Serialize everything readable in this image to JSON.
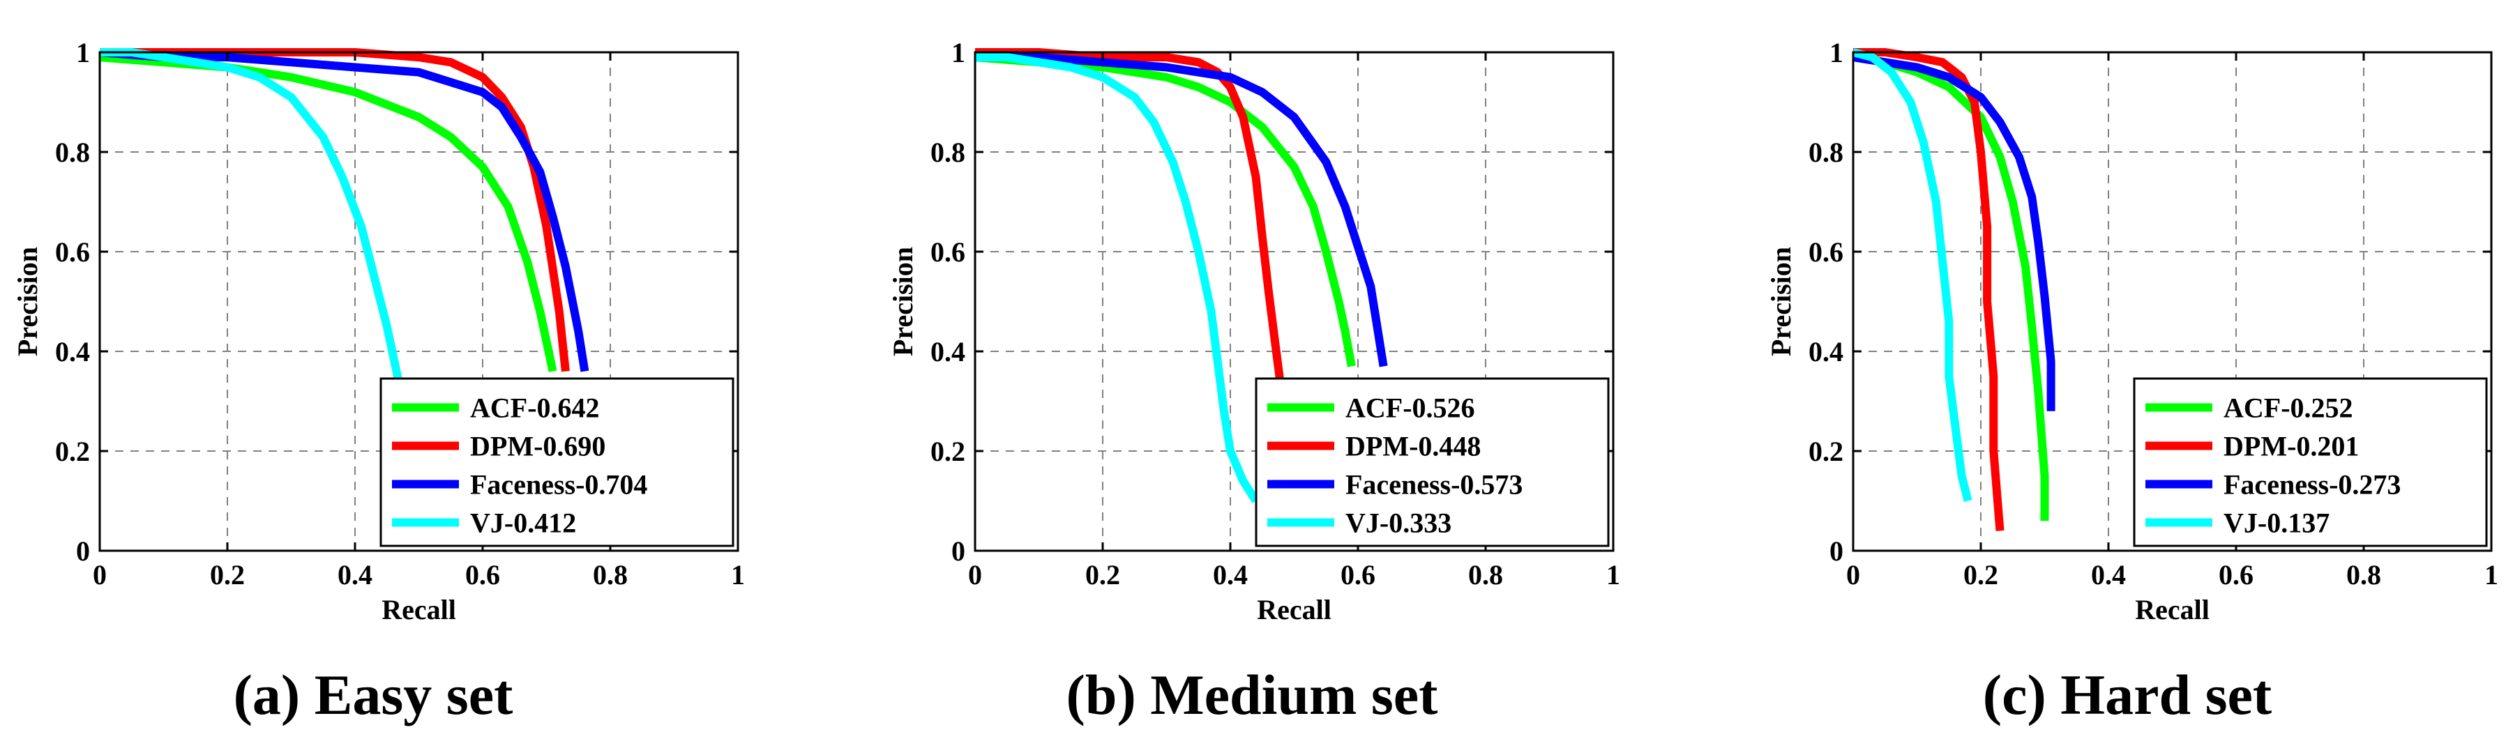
{
  "chart_data": [
    {
      "type": "line",
      "caption": "(a) Easy set",
      "xlabel": "Recall",
      "ylabel": "Precision",
      "xlim": [
        0,
        1
      ],
      "ylim": [
        0,
        1
      ],
      "xticks": [
        "0",
        "0.2",
        "0.4",
        "0.6",
        "0.8",
        "1"
      ],
      "yticks": [
        "0",
        "0.2",
        "0.4",
        "0.6",
        "0.8",
        "1"
      ],
      "grid": true,
      "legend_position": "bottom-right",
      "series": [
        {
          "name": "ACF-0.642",
          "color": "#00ff00",
          "x": [
            0.0,
            0.1,
            0.2,
            0.3,
            0.4,
            0.5,
            0.55,
            0.6,
            0.64,
            0.67,
            0.69,
            0.7,
            0.71
          ],
          "y": [
            0.99,
            0.98,
            0.97,
            0.95,
            0.92,
            0.87,
            0.83,
            0.77,
            0.69,
            0.58,
            0.48,
            0.42,
            0.36
          ]
        },
        {
          "name": "DPM-0.690",
          "color": "#ff0000",
          "x": [
            0.0,
            0.1,
            0.2,
            0.3,
            0.4,
            0.5,
            0.55,
            0.6,
            0.63,
            0.66,
            0.68,
            0.7,
            0.72,
            0.73
          ],
          "y": [
            1.0,
            1.0,
            1.0,
            1.0,
            1.0,
            0.99,
            0.98,
            0.95,
            0.91,
            0.85,
            0.77,
            0.65,
            0.48,
            0.36
          ]
        },
        {
          "name": "Faceness-0.704",
          "color": "#0000ff",
          "x": [
            0.0,
            0.1,
            0.2,
            0.3,
            0.4,
            0.5,
            0.6,
            0.63,
            0.66,
            0.69,
            0.71,
            0.73,
            0.75,
            0.76
          ],
          "y": [
            1.0,
            0.99,
            0.99,
            0.98,
            0.97,
            0.96,
            0.92,
            0.89,
            0.83,
            0.76,
            0.67,
            0.57,
            0.44,
            0.36
          ]
        },
        {
          "name": "VJ-0.412",
          "color": "#00ffff",
          "x": [
            0.0,
            0.05,
            0.1,
            0.15,
            0.2,
            0.25,
            0.3,
            0.35,
            0.38,
            0.41,
            0.43,
            0.45,
            0.47,
            0.49,
            0.51,
            0.53
          ],
          "y": [
            1.0,
            1.0,
            0.99,
            0.98,
            0.97,
            0.95,
            0.91,
            0.83,
            0.75,
            0.65,
            0.55,
            0.45,
            0.33,
            0.22,
            0.13,
            0.07
          ]
        }
      ]
    },
    {
      "type": "line",
      "caption": "(b) Medium set",
      "xlabel": "Recall",
      "ylabel": "Precision",
      "xlim": [
        0,
        1
      ],
      "ylim": [
        0,
        1
      ],
      "xticks": [
        "0",
        "0.2",
        "0.4",
        "0.6",
        "0.8",
        "1"
      ],
      "yticks": [
        "0",
        "0.2",
        "0.4",
        "0.6",
        "0.8",
        "1"
      ],
      "grid": true,
      "legend_position": "bottom-right",
      "series": [
        {
          "name": "ACF-0.526",
          "color": "#00ff00",
          "x": [
            0.0,
            0.1,
            0.2,
            0.3,
            0.35,
            0.4,
            0.45,
            0.5,
            0.53,
            0.55,
            0.57,
            0.58,
            0.59
          ],
          "y": [
            0.99,
            0.98,
            0.97,
            0.95,
            0.93,
            0.9,
            0.85,
            0.77,
            0.69,
            0.6,
            0.5,
            0.44,
            0.37
          ]
        },
        {
          "name": "DPM-0.448",
          "color": "#ff0000",
          "x": [
            0.0,
            0.1,
            0.2,
            0.3,
            0.35,
            0.38,
            0.4,
            0.42,
            0.44,
            0.45,
            0.46,
            0.47,
            0.48,
            0.49,
            0.5,
            0.5
          ],
          "y": [
            1.0,
            1.0,
            0.99,
            0.99,
            0.98,
            0.96,
            0.93,
            0.87,
            0.75,
            0.63,
            0.52,
            0.42,
            0.32,
            0.2,
            0.1,
            0.04
          ]
        },
        {
          "name": "Faceness-0.573",
          "color": "#0000ff",
          "x": [
            0.0,
            0.1,
            0.2,
            0.3,
            0.4,
            0.45,
            0.5,
            0.55,
            0.58,
            0.6,
            0.62,
            0.63,
            0.64
          ],
          "y": [
            0.99,
            0.99,
            0.98,
            0.97,
            0.95,
            0.92,
            0.87,
            0.78,
            0.69,
            0.61,
            0.53,
            0.45,
            0.37
          ]
        },
        {
          "name": "VJ-0.333",
          "color": "#00ffff",
          "x": [
            0.0,
            0.05,
            0.1,
            0.15,
            0.2,
            0.25,
            0.28,
            0.31,
            0.33,
            0.35,
            0.37,
            0.38,
            0.39,
            0.4,
            0.42,
            0.44
          ],
          "y": [
            0.99,
            0.99,
            0.98,
            0.97,
            0.95,
            0.91,
            0.86,
            0.78,
            0.7,
            0.6,
            0.48,
            0.38,
            0.28,
            0.2,
            0.14,
            0.1
          ]
        }
      ]
    },
    {
      "type": "line",
      "caption": "(c) Hard set",
      "xlabel": "Recall",
      "ylabel": "Precision",
      "xlim": [
        0,
        1
      ],
      "ylim": [
        0,
        1
      ],
      "xticks": [
        "0",
        "0.2",
        "0.4",
        "0.6",
        "0.8",
        "1"
      ],
      "yticks": [
        "0",
        "0.2",
        "0.4",
        "0.6",
        "0.8",
        "1"
      ],
      "grid": true,
      "legend_position": "bottom-right",
      "series": [
        {
          "name": "ACF-0.252",
          "color": "#00ff00",
          "x": [
            0.0,
            0.05,
            0.1,
            0.15,
            0.2,
            0.23,
            0.25,
            0.27,
            0.28,
            0.29,
            0.3,
            0.3
          ],
          "y": [
            0.99,
            0.98,
            0.96,
            0.93,
            0.87,
            0.79,
            0.7,
            0.57,
            0.45,
            0.32,
            0.15,
            0.06
          ]
        },
        {
          "name": "DPM-0.201",
          "color": "#ff0000",
          "x": [
            0.0,
            0.05,
            0.1,
            0.14,
            0.17,
            0.19,
            0.2,
            0.21,
            0.21,
            0.22,
            0.22,
            0.23
          ],
          "y": [
            1.0,
            1.0,
            0.99,
            0.98,
            0.95,
            0.9,
            0.8,
            0.65,
            0.5,
            0.35,
            0.2,
            0.04
          ]
        },
        {
          "name": "Faceness-0.273",
          "color": "#0000ff",
          "x": [
            0.0,
            0.05,
            0.1,
            0.15,
            0.2,
            0.23,
            0.26,
            0.28,
            0.29,
            0.3,
            0.31,
            0.31
          ],
          "y": [
            0.99,
            0.98,
            0.97,
            0.95,
            0.91,
            0.86,
            0.79,
            0.71,
            0.62,
            0.51,
            0.38,
            0.28
          ]
        },
        {
          "name": "VJ-0.137",
          "color": "#00ffff",
          "x": [
            0.0,
            0.03,
            0.06,
            0.09,
            0.11,
            0.13,
            0.14,
            0.15,
            0.15,
            0.16,
            0.17,
            0.18
          ],
          "y": [
            1.0,
            0.99,
            0.96,
            0.9,
            0.82,
            0.7,
            0.58,
            0.46,
            0.35,
            0.25,
            0.15,
            0.1
          ]
        }
      ]
    }
  ]
}
